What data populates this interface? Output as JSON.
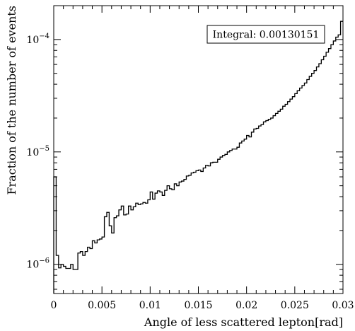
{
  "chart_data": {
    "type": "histogram",
    "title": "",
    "xlabel": "Angle of less scattered lepton[rad]",
    "ylabel": "Fraction of the number of events",
    "xlim": [
      0,
      0.03
    ],
    "ylim": [
      5.5e-07,
      0.0002
    ],
    "yscale": "log",
    "grid": false,
    "legend": "none",
    "annotation": "Integral: 0.00130151",
    "x_ticks": [
      0,
      0.005,
      0.01,
      0.015,
      0.02,
      0.025,
      0.03
    ],
    "x_tick_labels": [
      "0",
      "0.005",
      "0.01",
      "0.015",
      "0.02",
      "0.025",
      "0.03"
    ],
    "y_tick_labels": [
      {
        "value": 1e-06,
        "base": "10",
        "exp": "−6"
      },
      {
        "value": 1e-05,
        "base": "10",
        "exp": "−5"
      },
      {
        "value": 0.0001,
        "base": "10",
        "exp": "−4"
      }
    ],
    "bin_width": 0.00025,
    "bin_edges_range": [
      0,
      0.03
    ],
    "values": [
      6e-06,
      1.2e-06,
      9.3e-07,
      1e-06,
      9.6e-07,
      9.2e-07,
      9.2e-07,
      1e-06,
      9e-07,
      9e-07,
      1.26e-06,
      1.3e-06,
      1.2e-06,
      1.3e-06,
      1.42e-06,
      1.38e-06,
      1.62e-06,
      1.55e-06,
      1.65e-06,
      1.68e-06,
      1.75e-06,
      2.65e-06,
      2.9e-06,
      2.2e-06,
      1.9e-06,
      2.6e-06,
      2.7e-06,
      3.05e-06,
      3.3e-06,
      2.75e-06,
      2.8e-06,
      3.3e-06,
      3.05e-06,
      3.25e-06,
      3.5e-06,
      3.4e-06,
      3.45e-06,
      3.55e-06,
      3.5e-06,
      3.75e-06,
      4.4e-06,
      3.8e-06,
      4.3e-06,
      4.5e-06,
      4.4e-06,
      4.1e-06,
      4.55e-06,
      5e-06,
      4.7e-06,
      4.6e-06,
      5.2e-06,
      5e-06,
      5.4e-06,
      5.5e-06,
      5.7e-06,
      6.1e-06,
      6.2e-06,
      6.5e-06,
      6.6e-06,
      6.8e-06,
      6.9e-06,
      6.7e-06,
      7.2e-06,
      7.6e-06,
      7.5e-06,
      8e-06,
      8.1e-06,
      8.1e-06,
      8.6e-06,
      9e-06,
      9.3e-06,
      9.5e-06,
      1e-05,
      1.03e-05,
      1.06e-05,
      1.06e-05,
      1.1e-05,
      1.2e-05,
      1.25e-05,
      1.3e-05,
      1.4e-05,
      1.36e-05,
      1.5e-05,
      1.6e-05,
      1.62e-05,
      1.7e-05,
      1.75e-05,
      1.85e-05,
      1.9e-05,
      1.95e-05,
      2e-05,
      2.1e-05,
      2.2e-05,
      2.3e-05,
      2.4e-05,
      2.55e-05,
      2.65e-05,
      2.8e-05,
      2.95e-05,
      3.1e-05,
      3.3e-05,
      3.5e-05,
      3.7e-05,
      3.9e-05,
      4.1e-05,
      4.4e-05,
      4.7e-05,
      5e-05,
      5.3e-05,
      5.7e-05,
      6.1e-05,
      6.6e-05,
      7.1e-05,
      7.7e-05,
      8.3e-05,
      9e-05,
      9.7e-05,
      0.000105,
      0.00011,
      0.000145
    ]
  }
}
